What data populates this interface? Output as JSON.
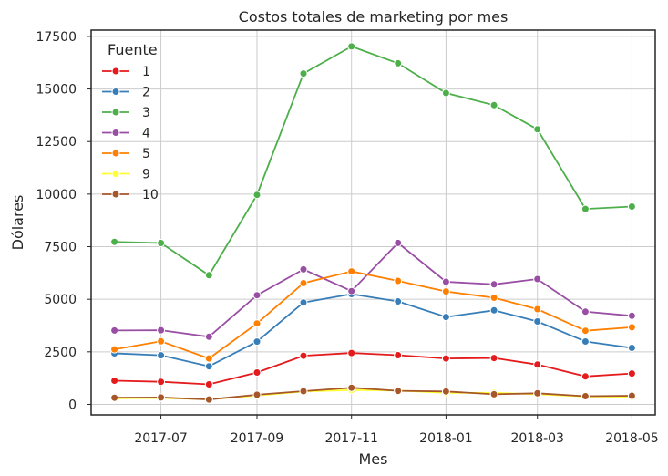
{
  "chart_data": {
    "type": "line",
    "title": "Costos totales de marketing por mes",
    "xlabel": "Mes",
    "ylabel": "Dólares",
    "x": [
      "2017-06-01",
      "2017-07-01",
      "2017-08-01",
      "2017-09-01",
      "2017-10-01",
      "2017-11-01",
      "2017-12-01",
      "2018-01-01",
      "2018-02-01",
      "2018-03-01",
      "2018-04-01",
      "2018-05-01"
    ],
    "x_tick_labels": [
      "2017-07",
      "2017-09",
      "2017-11",
      "2018-01",
      "2018-03",
      "2018-05"
    ],
    "y_tick_labels": [
      "0",
      "2500",
      "5000",
      "7500",
      "10000",
      "12500",
      "15000",
      "17500"
    ],
    "ylim": [
      -500,
      17800
    ],
    "grid": true,
    "legend": {
      "title": "Fuente",
      "placement": "top-left"
    },
    "series": [
      {
        "name": "1",
        "color": "#e41a1c",
        "values": [
          1125,
          1072,
          952,
          1518,
          2316,
          2445,
          2342,
          2186,
          2204,
          1893,
          1328,
          1468
        ]
      },
      {
        "name": "2",
        "color": "#377eb8",
        "values": [
          2427,
          2334,
          1811,
          2985,
          4845,
          5247,
          4897,
          4157,
          4474,
          3943,
          2993,
          2689
        ]
      },
      {
        "name": "3",
        "color": "#4daf4a",
        "values": [
          7732,
          7674,
          6144,
          9964,
          15737,
          17025,
          16220,
          14809,
          14229,
          13081,
          9297,
          9411
        ]
      },
      {
        "name": "4",
        "color": "#984ea3",
        "values": [
          3515,
          3530,
          3218,
          5193,
          6421,
          5388,
          7680,
          5832,
          5711,
          5961,
          4408,
          4215
        ]
      },
      {
        "name": "5",
        "color": "#ff7f00",
        "values": [
          2617,
          2998,
          2185,
          3849,
          5767,
          6325,
          5873,
          5372,
          5072,
          4530,
          3501,
          3669
        ]
      },
      {
        "name": "9",
        "color": "#ffff33",
        "values": [
          285,
          302,
          248,
          415,
          610,
          683,
          657,
          547,
          551,
          480,
          372,
          362
        ]
      },
      {
        "name": "10",
        "color": "#a65628",
        "values": [
          314,
          330,
          232,
          460,
          626,
          792,
          645,
          614,
          480,
          526,
          388,
          409
        ]
      }
    ]
  }
}
